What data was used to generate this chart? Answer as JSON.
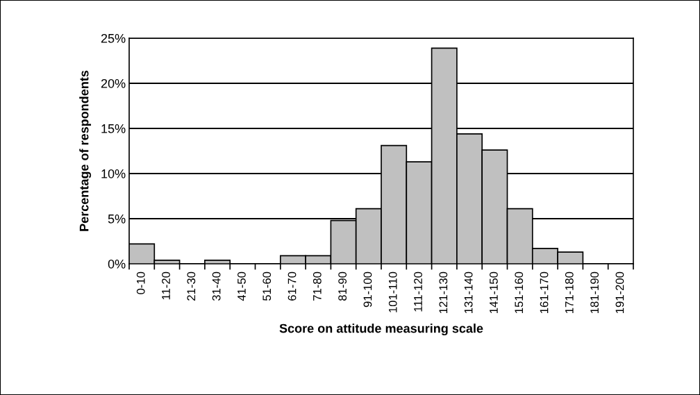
{
  "chart_data": {
    "type": "bar",
    "xlabel": "Score on attitude measuring scale",
    "ylabel": "Percentage of respondents",
    "categories": [
      "0-10",
      "11-20",
      "21-30",
      "31-40",
      "41-50",
      "51-60",
      "61-70",
      "71-80",
      "81-90",
      "91-100",
      "101-110",
      "111-120",
      "121-130",
      "131-140",
      "141-150",
      "151-160",
      "161-170",
      "171-180",
      "181-190",
      "191-200"
    ],
    "values": [
      2.2,
      0.4,
      0,
      0.4,
      0,
      0,
      0.9,
      0.9,
      4.8,
      6.1,
      13.1,
      11.3,
      23.9,
      14.4,
      12.6,
      6.1,
      1.7,
      1.3,
      0,
      0
    ],
    "color": "#c0c0c0",
    "ylim": [
      0,
      25
    ],
    "yticks": [
      {
        "value": 0,
        "label": "0%"
      },
      {
        "value": 5,
        "label": "5%"
      },
      {
        "value": 10,
        "label": "10%"
      },
      {
        "value": 15,
        "label": "15%"
      },
      {
        "value": 20,
        "label": "20%"
      },
      {
        "value": 25,
        "label": "25%"
      }
    ],
    "grid": "y",
    "legend": false
  }
}
